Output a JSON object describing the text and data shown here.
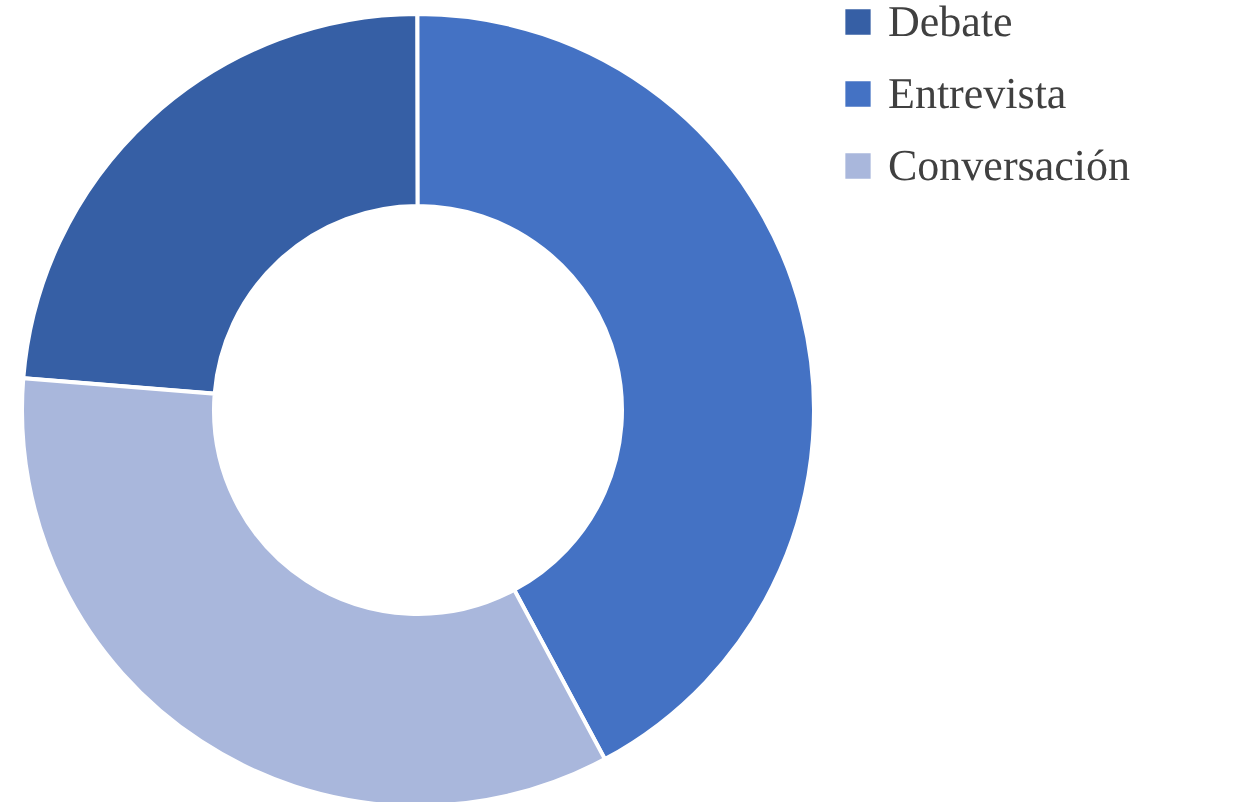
{
  "chart_data": {
    "type": "donut",
    "categories": [
      "Debate",
      "Entrevista",
      "Conversación"
    ],
    "values": [
      23.7,
      42.2,
      34.1
    ],
    "colors": [
      "#365fa5",
      "#4472c4",
      "#a9b7dc"
    ],
    "legend": "right"
  }
}
